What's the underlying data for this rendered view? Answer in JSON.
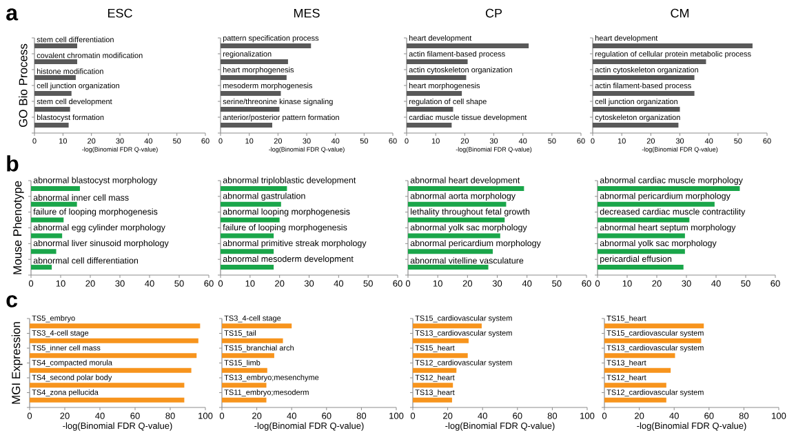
{
  "chart_data": [
    {
      "type": "bar",
      "orientation": "horizontal",
      "title": "ESC",
      "ylabel": "GO Bio Process",
      "xlabel": "-log(Binomial FDR Q-value)",
      "annotations": [
        "a"
      ],
      "color": "#595959",
      "categories": [
        "stem cell differentiation",
        "covalent chromatin modification",
        "histone modification",
        "cell junction organization",
        "stem cell development",
        "blastocyst formation"
      ],
      "values": [
        15,
        15,
        14.5,
        13,
        12.5,
        12
      ],
      "xlim": [
        0,
        60
      ],
      "xticks": [
        0,
        10,
        20,
        30,
        40,
        50,
        60
      ]
    },
    {
      "type": "bar",
      "orientation": "horizontal",
      "title": "MES",
      "xlabel": "-log(Binomial FDR Q-value)",
      "color": "#595959",
      "categories": [
        "pattern specification process",
        "regionalization",
        "heart morphogenesis",
        "mesoderm morphogenesis",
        "serine/threonine kinase signaling",
        "anterior/posterior pattern formation"
      ],
      "values": [
        31.5,
        23.5,
        23,
        21,
        20.5,
        18
      ],
      "xlim": [
        0,
        60
      ],
      "xticks": [
        0,
        10,
        20,
        30,
        40,
        50,
        60
      ]
    },
    {
      "type": "bar",
      "orientation": "horizontal",
      "title": "CP",
      "xlabel": "-log(Binomial FDR Q-value)",
      "color": "#595959",
      "categories": [
        "heart development",
        "actin filament-based process",
        "actin cytoskeleton organization",
        "heart morphogenesis",
        "regulation of cell shape",
        "cardiac muscle tissue development"
      ],
      "values": [
        42,
        21,
        20.5,
        19,
        16,
        15.5
      ],
      "xlim": [
        0,
        60
      ],
      "xticks": [
        0,
        10,
        20,
        30,
        40,
        50,
        60
      ]
    },
    {
      "type": "bar",
      "orientation": "horizontal",
      "title": "CM",
      "xlabel": "-log(Binomial FDR Q-value)",
      "color": "#595959",
      "categories": [
        "heart development",
        "regulation of cellular protein metabolic process",
        "actin cytoskeleton organization",
        "actin filament-based process",
        "cell junction organization",
        "cytoskeleton organization"
      ],
      "values": [
        55,
        39,
        35,
        35,
        30,
        29.5
      ],
      "xlim": [
        0,
        60
      ],
      "xticks": [
        0,
        10,
        20,
        30,
        40,
        50,
        60
      ]
    },
    {
      "type": "bar",
      "orientation": "horizontal",
      "ylabel": "Mouse Phenotype",
      "annotations": [
        "b"
      ],
      "color": "#1aa64a",
      "categories": [
        "abnormal blastocyst morphology",
        "abnormal inner cell mass",
        "failure of looping morphogenesis",
        "abnormal egg cylinder morphology",
        "abnormal liver sinusoid morphology",
        "abnormal cell differentiation"
      ],
      "values": [
        16.5,
        15.5,
        11,
        10.5,
        8.5,
        7
      ],
      "xlim": [
        0,
        60
      ],
      "xticks": [
        0,
        10,
        20,
        30,
        40,
        50,
        60
      ]
    },
    {
      "type": "bar",
      "orientation": "horizontal",
      "color": "#1aa64a",
      "categories": [
        "abnormal triploblastic development",
        "abnormal gastrulation",
        "abnormal looping morphogenesis",
        "failure of looping morphogenesis",
        "abnormal primitive streak morphology",
        "abnormal mesoderm development"
      ],
      "values": [
        22.5,
        20.5,
        20,
        18,
        18,
        18
      ],
      "xlim": [
        0,
        60
      ],
      "xticks": [
        0,
        10,
        20,
        30,
        40,
        50,
        60
      ]
    },
    {
      "type": "bar",
      "orientation": "horizontal",
      "color": "#1aa64a",
      "categories": [
        "abnormal heart development",
        "abnormal aorta morphology",
        "lethality throughout fetal growth",
        "abnormal yolk sac morphology",
        "abnormal pericardium morphology",
        "abnormal vitelline vasculature"
      ],
      "values": [
        39,
        33,
        32.5,
        31,
        28.5,
        27
      ],
      "xlim": [
        0,
        60
      ],
      "xticks": [
        0,
        10,
        20,
        30,
        40,
        50,
        60
      ]
    },
    {
      "type": "bar",
      "orientation": "horizontal",
      "color": "#1aa64a",
      "categories": [
        "abnormal cardiac muscle morphology",
        "abnormal pericardium morphology",
        "decreased cardiac muscle contractility",
        "abnormal heart septum morphology",
        "abnormal yolk sac morphology",
        "pericardial effusion"
      ],
      "values": [
        48,
        39.5,
        31,
        29.5,
        29.5,
        29
      ],
      "xlim": [
        0,
        60
      ],
      "xticks": [
        0,
        10,
        20,
        30,
        40,
        50,
        60
      ]
    },
    {
      "type": "bar",
      "orientation": "horizontal",
      "ylabel": "MGI Expression",
      "xlabel": "-log(Binomial FDR Q-value)",
      "annotations": [
        "c"
      ],
      "color": "#f7941d",
      "categories": [
        "TS5_embryo",
        "TS3_4-cell stage",
        "TS5_inner cell mass",
        "TS4_compacted morula",
        "TS4_second polar body",
        "TS4_zona pellucida"
      ],
      "values": [
        97,
        96,
        95,
        92,
        88,
        88
      ],
      "xlim": [
        0,
        100
      ],
      "xticks": [
        0,
        20,
        40,
        60,
        80,
        100
      ]
    },
    {
      "type": "bar",
      "orientation": "horizontal",
      "xlabel": "-log(Binomial FDR Q-value)",
      "color": "#f7941d",
      "categories": [
        "TS3_4-cell stage",
        "TS15_tail",
        "TS15_branchial arch",
        "TS15_limb",
        "TS13_embryo;mesenchyme",
        "TS11_embryo;mesoderm"
      ],
      "values": [
        40,
        35,
        30,
        26,
        25.5,
        25.5
      ],
      "xlim": [
        0,
        100
      ],
      "xticks": [
        0,
        20,
        40,
        60,
        80,
        100
      ]
    },
    {
      "type": "bar",
      "orientation": "horizontal",
      "xlabel": "-log(Binomial FDR Q-value)",
      "color": "#f7941d",
      "categories": [
        "TS15_cardiovascular system",
        "TS13_cardiovascular system",
        "TS15_heart",
        "TS12_cardiovascular system",
        "TS12_heart",
        "TS13_heart"
      ],
      "values": [
        39.5,
        32,
        31.5,
        25,
        23,
        22.5
      ],
      "xlim": [
        0,
        100
      ],
      "xticks": [
        0,
        20,
        40,
        60,
        80,
        100
      ]
    },
    {
      "type": "bar",
      "orientation": "horizontal",
      "xlabel": "-log(Binomial FDR Q-value)",
      "color": "#f7941d",
      "categories": [
        "TS15_heart",
        "TS15_cardiovascular system",
        "TS13_cardiovascular system",
        "TS13_heart",
        "TS12_heart",
        "TS12_cardiovascular system"
      ],
      "values": [
        57,
        55.5,
        40.5,
        38,
        35.5,
        35.5
      ],
      "xlim": [
        0,
        100
      ],
      "xticks": [
        0,
        20,
        40,
        60,
        80,
        100
      ]
    }
  ]
}
